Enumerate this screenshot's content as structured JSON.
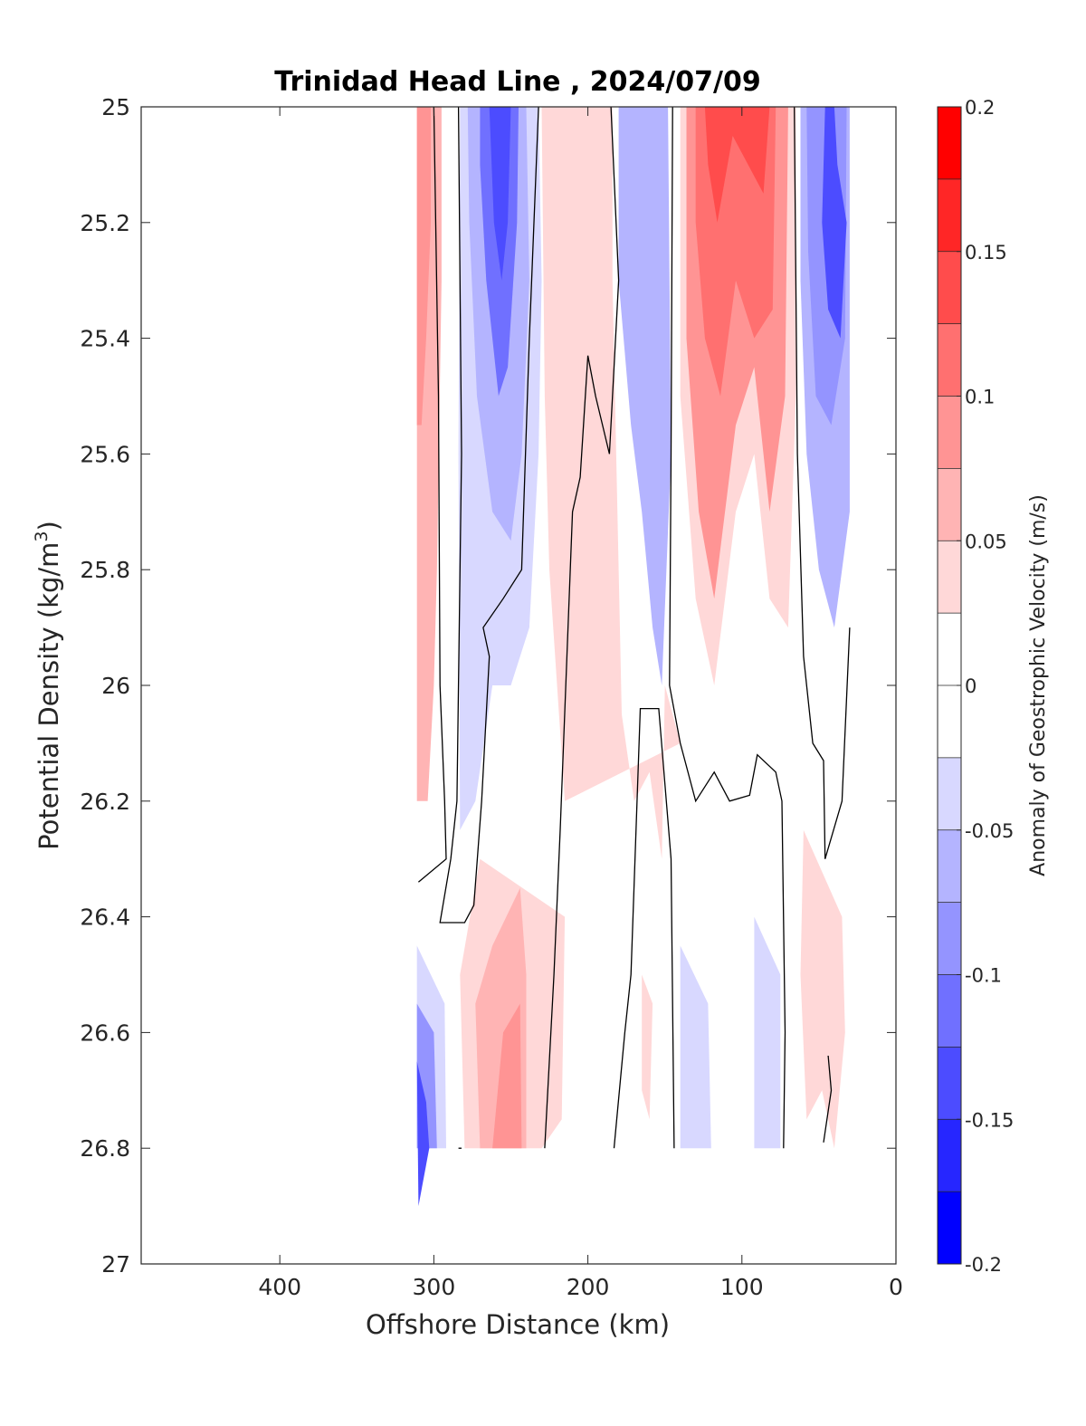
{
  "chart_data": {
    "type": "heatmap",
    "title": "Trinidad Head Line , 2024/07/09",
    "xlabel": "Offshore Distance (km)",
    "ylabel": "Potential Density (kg/m",
    "ylabel_sup": "3",
    "ylabel_close": ")",
    "colorbar_label": "Anomaly of Geostrophic Velocity (m/s)",
    "xlim": [
      490,
      0
    ],
    "ylim": [
      25,
      27
    ],
    "x_ticks": [
      "400",
      "300",
      "200",
      "100",
      "0"
    ],
    "x_tick_values": [
      400,
      300,
      200,
      100,
      0
    ],
    "y_ticks": [
      "25",
      "25.2",
      "25.4",
      "25.6",
      "25.8",
      "26",
      "26.2",
      "26.4",
      "26.6",
      "26.8",
      "27"
    ],
    "y_tick_values": [
      25,
      25.2,
      25.4,
      25.6,
      25.8,
      26,
      26.2,
      26.4,
      26.6,
      26.8,
      27
    ],
    "colorbar": {
      "min": -0.2,
      "max": 0.2,
      "tick_labels": [
        "0.2",
        "0.15",
        "0.1",
        "0.05",
        "0",
        "-0.05",
        "-0.1",
        "-0.15",
        "-0.2"
      ],
      "tick_values": [
        0.2,
        0.15,
        0.1,
        0.05,
        0,
        -0.05,
        -0.1,
        -0.15,
        -0.2
      ],
      "levels_top_to_bottom": [
        {
          "lo": 0.175,
          "hi": 0.2,
          "color": "#ff0000"
        },
        {
          "lo": 0.15,
          "hi": 0.175,
          "color": "#ff2626"
        },
        {
          "lo": 0.125,
          "hi": 0.15,
          "color": "#ff4c4c"
        },
        {
          "lo": 0.1,
          "hi": 0.125,
          "color": "#ff7070"
        },
        {
          "lo": 0.075,
          "hi": 0.1,
          "color": "#ff9494"
        },
        {
          "lo": 0.05,
          "hi": 0.075,
          "color": "#ffb4b4"
        },
        {
          "lo": 0.025,
          "hi": 0.05,
          "color": "#ffd8d8"
        },
        {
          "lo": 0,
          "hi": 0.025,
          "color": "#ffffff"
        },
        {
          "lo": -0.025,
          "hi": 0,
          "color": "#ffffff"
        },
        {
          "lo": -0.05,
          "hi": -0.025,
          "color": "#d8d8ff"
        },
        {
          "lo": -0.075,
          "hi": -0.05,
          "color": "#b4b4ff"
        },
        {
          "lo": -0.1,
          "hi": -0.075,
          "color": "#9494ff"
        },
        {
          "lo": -0.125,
          "hi": -0.1,
          "color": "#7070ff"
        },
        {
          "lo": -0.15,
          "hi": -0.125,
          "color": "#4c4cff"
        },
        {
          "lo": -0.175,
          "hi": -0.15,
          "color": "#2626ff"
        },
        {
          "lo": -0.2,
          "hi": -0.175,
          "color": "#0000ff"
        }
      ]
    },
    "anomaly_bands": [
      {
        "value": 0.06,
        "pts": [
          [
            311,
            25
          ],
          [
            295,
            25
          ],
          [
            295,
            25.3
          ],
          [
            298,
            25.8
          ],
          [
            300,
            26.0
          ],
          [
            304,
            26.2
          ],
          [
            311,
            26.2
          ]
        ]
      },
      {
        "value": 0.1,
        "pts": [
          [
            311,
            25
          ],
          [
            302,
            25
          ],
          [
            302,
            25.2
          ],
          [
            305,
            25.4
          ],
          [
            308,
            25.55
          ],
          [
            311,
            25.55
          ]
        ]
      },
      {
        "value": -0.04,
        "pts": [
          [
            283,
            25
          ],
          [
            232,
            25
          ],
          [
            230,
            25.3
          ],
          [
            232,
            25.6
          ],
          [
            238,
            25.9
          ],
          [
            250,
            26.0
          ],
          [
            262,
            26.0
          ],
          [
            273,
            26.2
          ],
          [
            283,
            26.25
          ],
          [
            284,
            25.6
          ]
        ]
      },
      {
        "value": -0.07,
        "pts": [
          [
            278,
            25
          ],
          [
            240,
            25
          ],
          [
            238,
            25.3
          ],
          [
            243,
            25.6
          ],
          [
            250,
            25.75
          ],
          [
            262,
            25.7
          ],
          [
            272,
            25.5
          ],
          [
            277,
            25.2
          ]
        ]
      },
      {
        "value": -0.1,
        "pts": [
          [
            270,
            25
          ],
          [
            245,
            25
          ],
          [
            246,
            25.2
          ],
          [
            252,
            25.45
          ],
          [
            258,
            25.5
          ],
          [
            266,
            25.3
          ],
          [
            270,
            25.1
          ]
        ]
      },
      {
        "value": -0.13,
        "pts": [
          [
            264,
            25
          ],
          [
            250,
            25
          ],
          [
            252,
            25.2
          ],
          [
            256,
            25.3
          ],
          [
            261,
            25.2
          ]
        ]
      },
      {
        "value": 0.04,
        "pts": [
          [
            230,
            25
          ],
          [
            184,
            25
          ],
          [
            184,
            25.3
          ],
          [
            182,
            25.55
          ],
          [
            178,
            26.05
          ],
          [
            170,
            26.2
          ],
          [
            160,
            26.15
          ],
          [
            152,
            26.3
          ],
          [
            150,
            26.0
          ],
          [
            140,
            26.1
          ],
          [
            215,
            26.2
          ],
          [
            225,
            25.8
          ],
          [
            228,
            25.5
          ]
        ]
      },
      {
        "value": 0.04,
        "pts": [
          [
            270,
            26.3
          ],
          [
            215,
            26.4
          ],
          [
            217,
            26.75
          ],
          [
            230,
            26.8
          ],
          [
            280,
            26.8
          ],
          [
            283,
            26.5
          ]
        ]
      },
      {
        "value": 0.07,
        "pts": [
          [
            262,
            26.45
          ],
          [
            244,
            26.35
          ],
          [
            240,
            26.5
          ],
          [
            240,
            26.8
          ],
          [
            270,
            26.8
          ],
          [
            273,
            26.55
          ]
        ]
      },
      {
        "value": 0.1,
        "pts": [
          [
            255,
            26.6
          ],
          [
            244,
            26.55
          ],
          [
            243,
            26.8
          ],
          [
            262,
            26.8
          ]
        ]
      },
      {
        "value": -0.05,
        "pts": [
          [
            180,
            25
          ],
          [
            148,
            25
          ],
          [
            146,
            25.6
          ],
          [
            152,
            26.0
          ],
          [
            158,
            25.9
          ],
          [
            165,
            25.7
          ],
          [
            172,
            25.55
          ],
          [
            180,
            25.3
          ]
        ]
      },
      {
        "value": -0.07,
        "pts": [
          [
            175,
            25
          ],
          [
            152,
            25
          ],
          [
            152,
            25.3
          ],
          [
            160,
            25.55
          ],
          [
            170,
            25.4
          ],
          [
            175,
            25.2
          ]
        ]
      },
      {
        "value": 0.05,
        "pts": [
          [
            140,
            25
          ],
          [
            65,
            25
          ],
          [
            65,
            25.5
          ],
          [
            70,
            25.9
          ],
          [
            82,
            25.85
          ],
          [
            92,
            25.6
          ],
          [
            104,
            25.7
          ],
          [
            118,
            26.0
          ],
          [
            130,
            25.85
          ],
          [
            140,
            25.5
          ]
        ]
      },
      {
        "value": 0.08,
        "pts": [
          [
            136,
            25
          ],
          [
            70,
            25
          ],
          [
            72,
            25.5
          ],
          [
            82,
            25.7
          ],
          [
            92,
            25.45
          ],
          [
            104,
            25.55
          ],
          [
            118,
            25.85
          ],
          [
            128,
            25.7
          ],
          [
            136,
            25.4
          ]
        ]
      },
      {
        "value": 0.11,
        "pts": [
          [
            130,
            25
          ],
          [
            78,
            25
          ],
          [
            80,
            25.35
          ],
          [
            92,
            25.4
          ],
          [
            104,
            25.3
          ],
          [
            114,
            25.5
          ],
          [
            124,
            25.4
          ],
          [
            130,
            25.2
          ]
        ]
      },
      {
        "value": 0.14,
        "pts": [
          [
            124,
            25
          ],
          [
            82,
            25
          ],
          [
            86,
            25.15
          ],
          [
            96,
            25.1
          ],
          [
            106,
            25.05
          ],
          [
            116,
            25.2
          ],
          [
            122,
            25.1
          ]
        ]
      },
      {
        "value": -0.05,
        "pts": [
          [
            62,
            25
          ],
          [
            30,
            25
          ],
          [
            30,
            25.7
          ],
          [
            40,
            25.9
          ],
          [
            50,
            25.8
          ],
          [
            58,
            25.6
          ],
          [
            62,
            25.3
          ]
        ]
      },
      {
        "value": -0.09,
        "pts": [
          [
            58,
            25
          ],
          [
            32,
            25
          ],
          [
            33,
            25.4
          ],
          [
            42,
            25.55
          ],
          [
            52,
            25.5
          ],
          [
            57,
            25.25
          ]
        ]
      },
      {
        "value": -0.14,
        "pts": [
          [
            46,
            25
          ],
          [
            40,
            25
          ],
          [
            38,
            25.1
          ],
          [
            32,
            25.2
          ],
          [
            36,
            25.4
          ],
          [
            44,
            25.35
          ],
          [
            48,
            25.2
          ]
        ]
      },
      {
        "value": 0.04,
        "pts": [
          [
            60,
            26.25
          ],
          [
            35,
            26.4
          ],
          [
            33,
            26.6
          ],
          [
            40,
            26.8
          ],
          [
            48,
            26.7
          ],
          [
            58,
            26.75
          ],
          [
            62,
            26.5
          ]
        ]
      },
      {
        "value": -0.04,
        "pts": [
          [
            140,
            26.45
          ],
          [
            122,
            26.55
          ],
          [
            120,
            26.8
          ],
          [
            140,
            26.8
          ]
        ]
      },
      {
        "value": -0.04,
        "pts": [
          [
            92,
            26.4
          ],
          [
            75,
            26.5
          ],
          [
            75,
            26.8
          ],
          [
            92,
            26.8
          ]
        ]
      },
      {
        "value": 0.03,
        "pts": [
          [
            165,
            26.5
          ],
          [
            158,
            26.55
          ],
          [
            160,
            26.75
          ],
          [
            165,
            26.7
          ]
        ]
      },
      {
        "value": -0.04,
        "pts": [
          [
            311,
            26.45
          ],
          [
            293,
            26.55
          ],
          [
            292,
            26.8
          ],
          [
            311,
            26.8
          ]
        ]
      },
      {
        "value": -0.08,
        "pts": [
          [
            311,
            26.55
          ],
          [
            300,
            26.6
          ],
          [
            298,
            26.8
          ],
          [
            311,
            26.8
          ]
        ]
      },
      {
        "value": -0.13,
        "pts": [
          [
            311,
            26.65
          ],
          [
            305,
            26.72
          ],
          [
            303,
            26.8
          ],
          [
            310,
            26.9
          ]
        ]
      }
    ],
    "zero_contours": [
      [
        [
          300,
          25
        ],
        [
          297,
          25.5
        ],
        [
          296,
          26.0
        ],
        [
          293,
          26.2
        ],
        [
          292,
          26.3
        ],
        [
          310,
          26.34
        ]
      ],
      [
        [
          284,
          25
        ],
        [
          282,
          25.6
        ],
        [
          285,
          26.2
        ],
        [
          289,
          26.3
        ],
        [
          296,
          26.41
        ],
        [
          280,
          26.41
        ],
        [
          274,
          26.38
        ],
        [
          269,
          26.2
        ],
        [
          264,
          25.95
        ],
        [
          268,
          25.9
        ],
        [
          255,
          25.85
        ],
        [
          243,
          25.8
        ],
        [
          238,
          25.4
        ],
        [
          232,
          25
        ]
      ],
      [
        [
          282,
          26.8
        ],
        [
          284,
          26.8
        ]
      ],
      [
        [
          185,
          25
        ],
        [
          180,
          25.3
        ],
        [
          186,
          25.6
        ],
        [
          195,
          25.5
        ],
        [
          200,
          25.43
        ],
        [
          205,
          25.64
        ],
        [
          210,
          25.7
        ],
        [
          218,
          26.25
        ],
        [
          222,
          26.5
        ],
        [
          228,
          26.8
        ]
      ],
      [
        [
          183,
          26.8
        ],
        [
          176,
          26.6
        ],
        [
          172,
          26.5
        ],
        [
          166,
          26.04
        ],
        [
          154,
          26.04
        ],
        [
          146,
          26.3
        ],
        [
          144,
          26.8
        ]
      ],
      [
        [
          145,
          25
        ],
        [
          146,
          25.6
        ],
        [
          147,
          26.0
        ],
        [
          140,
          26.1
        ],
        [
          130,
          26.2
        ],
        [
          118,
          26.15
        ],
        [
          108,
          26.2
        ],
        [
          95,
          26.19
        ],
        [
          90,
          26.12
        ],
        [
          78,
          26.15
        ],
        [
          74,
          26.2
        ],
        [
          72,
          26.6
        ],
        [
          73,
          26.8
        ]
      ],
      [
        [
          66,
          25
        ],
        [
          64,
          25.6
        ],
        [
          60,
          25.95
        ],
        [
          54,
          26.1
        ],
        [
          47,
          26.13
        ],
        [
          46,
          26.3
        ],
        [
          35,
          26.2
        ],
        [
          30,
          25.9
        ]
      ],
      [
        [
          44,
          26.64
        ],
        [
          42,
          26.7
        ],
        [
          47,
          26.79
        ]
      ]
    ]
  }
}
